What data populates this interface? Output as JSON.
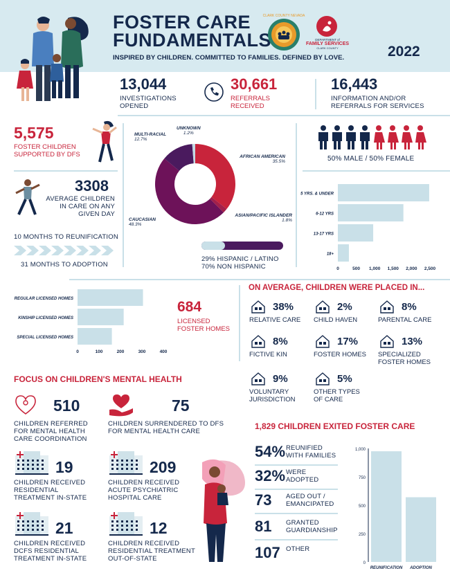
{
  "header": {
    "title_line1": "FOSTER CARE",
    "title_line2": "FUNDAMENTALS",
    "tagline": "INSPIRED BY CHILDREN. COMMITTED TO FAMILIES. DEFINED BY LOVE.",
    "year": "2022",
    "dfs_line1": "DEPARTMENT of",
    "dfs_line2": "FAMILY SERVICES",
    "dfs_line3": "CLARK COUNTY",
    "seal_text": "CLARK COUNTY NEVADA"
  },
  "stats_top": [
    {
      "value": "13,044",
      "label1": "INVESTIGATIONS",
      "label2": "OPENED"
    },
    {
      "value": "30,661",
      "label1": "REFERRALS",
      "label2": "RECEIVED"
    },
    {
      "value": "16,443",
      "label1": "INFORMATION AND/OR",
      "label2": "REFERRALS FOR SERVICES"
    }
  ],
  "left_stats": {
    "foster_value": "5,575",
    "foster_label1": "FOSTER CHILDREN",
    "foster_label2": "SUPPORTED BY DFS",
    "avg_value": "3308",
    "avg_label1": "AVERAGE CHILDREN",
    "avg_label2": "IN CARE ON ANY",
    "avg_label3": "GIVEN DAY",
    "reunify": "10 MONTHS TO REUNIFICATION",
    "adoption": "31 MONTHS TO ADOPTION"
  },
  "chart_data": [
    {
      "type": "pie",
      "categories": [
        "AFRICAN AMERICAN",
        "ASIAN/PACIFIC ISLANDER",
        "CAUCASIAN",
        "MULTI-RACIAL",
        "UNKNOWN"
      ],
      "values": [
        35.5,
        1.8,
        48.3,
        12.7,
        1.2
      ],
      "labels": [
        "35.5%",
        "1.8%",
        "48.3%",
        "12.7%",
        "1.2%"
      ],
      "colors": [
        "#c8243b",
        "#a3204a",
        "#6d1259",
        "#4a1a5e",
        "#c2d9e3"
      ]
    },
    {
      "type": "bar",
      "orientation": "horizontal",
      "categories": [
        "5 YRS. & UNDER",
        "6-12 YRS",
        "13-17 YRS",
        "18+"
      ],
      "values": [
        2480,
        1780,
        960,
        300
      ],
      "xticks": [
        "0",
        "500",
        "1,000",
        "1,500",
        "2,000",
        "2,500"
      ],
      "xlim": [
        0,
        2500
      ]
    },
    {
      "type": "bar",
      "orientation": "horizontal",
      "categories": [
        "REGULAR LICENSED HOMES",
        "KINSHIP LICENSED HOMES",
        "SPECIAL LICENSED HOMES"
      ],
      "values": [
        305,
        215,
        160
      ],
      "xticks": [
        "0",
        "100",
        "200",
        "300",
        "400"
      ],
      "xlim": [
        0,
        400
      ]
    },
    {
      "type": "bar",
      "categories": [
        "REUNIFICATION",
        "ADOPTION"
      ],
      "values": [
        975,
        570
      ],
      "yticks": [
        "0",
        "250",
        "500",
        "750",
        "1,000"
      ],
      "ylim": [
        0,
        1000
      ]
    }
  ],
  "gender": {
    "label": "50% MALE / 50% FEMALE",
    "male_color": "#14284b",
    "female_color": "#c8243b"
  },
  "hispanic": {
    "line1": "29% HISPANIC / LATINO",
    "line2": "70% NON HISPANIC"
  },
  "licensed": {
    "value": "684",
    "label1": "LICENSED",
    "label2": "FOSTER HOMES"
  },
  "placed": {
    "title": "ON AVERAGE, CHILDREN WERE PLACED IN...",
    "items": [
      {
        "pct": "38%",
        "label1": "RELATIVE CARE",
        "label2": ""
      },
      {
        "pct": "2%",
        "label1": "CHILD HAVEN",
        "label2": ""
      },
      {
        "pct": "8%",
        "label1": "PARENTAL CARE",
        "label2": ""
      },
      {
        "pct": "8%",
        "label1": "FICTIVE KIN",
        "label2": ""
      },
      {
        "pct": "17%",
        "label1": "FOSTER HOMES",
        "label2": ""
      },
      {
        "pct": "13%",
        "label1": "SPECIALIZED",
        "label2": "FOSTER HOMES"
      },
      {
        "pct": "9%",
        "label1": "VOLUNTARY",
        "label2": "JURISDICTION"
      },
      {
        "pct": "5%",
        "label1": "OTHER TYPES",
        "label2": "OF CARE"
      }
    ]
  },
  "mental": {
    "title": "FOCUS ON CHILDREN'S MENTAL HEALTH",
    "items": [
      {
        "value": "510",
        "l1": "CHILDREN REFERRED",
        "l2": "FOR MENTAL HEALTH",
        "l3": "CARE COORDINATION"
      },
      {
        "value": "75",
        "l1": "CHILDREN SURRENDERED TO DFS",
        "l2": "FOR MENTAL HEALTH CARE",
        "l3": ""
      },
      {
        "value": "19",
        "l1": "CHILDREN RECEIVED",
        "l2": "RESIDENTIAL",
        "l3": "TREATMENT IN-STATE"
      },
      {
        "value": "209",
        "l1": "CHILDREN RECEIVED",
        "l2": "ACUTE PSYCHIATRIC",
        "l3": "HOSPITAL CARE"
      },
      {
        "value": "21",
        "l1": "CHILDREN RECEIVED",
        "l2": "DCFS RESIDENTIAL",
        "l3": "TREATMENT IN-STATE"
      },
      {
        "value": "12",
        "l1": "CHILDREN RECEIVED",
        "l2": "RESIDENTIAL TREATMENT",
        "l3": "OUT-OF-STATE"
      }
    ]
  },
  "exited": {
    "title": "1,829 CHILDREN EXITED FOSTER CARE",
    "items": [
      {
        "value": "54%",
        "l1": "REUNIFIED",
        "l2": "WITH FAMILIES"
      },
      {
        "value": "32%",
        "l1": "WERE",
        "l2": "ADOPTED"
      },
      {
        "value": "73",
        "l1": "AGED OUT /",
        "l2": "EMANCIPATED"
      },
      {
        "value": "81",
        "l1": "GRANTED",
        "l2": "GUARDIANSHIP"
      },
      {
        "value": "107",
        "l1": "OTHER",
        "l2": ""
      }
    ]
  }
}
